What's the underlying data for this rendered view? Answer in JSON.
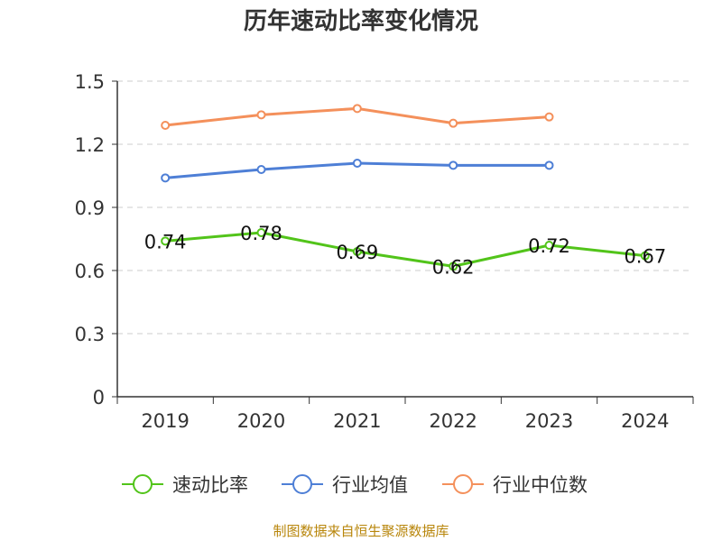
{
  "chart_data": {
    "type": "line",
    "title": "历年速动比率变化情况",
    "categories": [
      "2019",
      "2020",
      "2021",
      "2022",
      "2023",
      "2024"
    ],
    "ylim": [
      0,
      1.5
    ],
    "yticks": [
      "0",
      "0.3",
      "0.6",
      "0.9",
      "1.2",
      "1.5"
    ],
    "ytick_values": [
      0,
      0.3,
      0.6,
      0.9,
      1.2,
      1.5
    ],
    "grid": true,
    "legend_position": "bottom",
    "series": [
      {
        "name": "速动比率",
        "color": "#52c41a",
        "values": [
          0.74,
          0.78,
          0.69,
          0.62,
          0.72,
          0.67
        ],
        "labels": [
          "0.74",
          "0.78",
          "0.69",
          "0.62",
          "0.72",
          "0.67"
        ]
      },
      {
        "name": "行业均值",
        "color": "#4e7fd6",
        "values": [
          1.04,
          1.08,
          1.11,
          1.1,
          1.1,
          null
        ]
      },
      {
        "name": "行业中位数",
        "color": "#f4905b",
        "values": [
          1.29,
          1.34,
          1.37,
          1.3,
          1.33,
          null
        ]
      }
    ],
    "source": "制图数据来自恒生聚源数据库"
  }
}
